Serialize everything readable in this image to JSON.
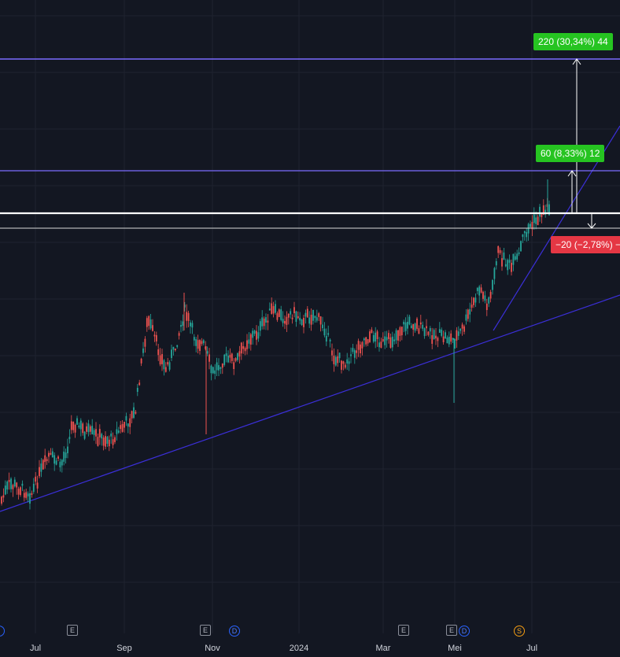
{
  "colors": {
    "background": "#131722",
    "grid": "#1f2330",
    "up_candle": "#26a69a",
    "down_candle": "#ef5350",
    "trendline": "#3b2fd9",
    "level_line": "#7b6cff",
    "measure_up": "#26c421",
    "measure_down": "#e53744"
  },
  "chart_data": {
    "type": "candlestick",
    "x_axis": {
      "tick_labels": [
        "Jul",
        "Sep",
        "Nov",
        "2024",
        "Mar",
        "Mei",
        "Jul"
      ]
    },
    "price_levels": [
      {
        "kind": "target",
        "label": "220 (30,34%) 44"
      },
      {
        "kind": "target",
        "label": "60 (8,33%) 12"
      },
      {
        "kind": "entry"
      },
      {
        "kind": "stop",
        "label": "−20 (−2,78%) −"
      }
    ],
    "trendlines": [
      {
        "name": "long-term support"
      },
      {
        "name": "short-term support"
      }
    ],
    "events": [
      {
        "type": "earnings",
        "symbol": "E"
      },
      {
        "type": "earnings",
        "symbol": "E"
      },
      {
        "type": "dividend",
        "symbol": "D"
      },
      {
        "type": "earnings",
        "symbol": "E"
      },
      {
        "type": "earnings",
        "symbol": "E"
      },
      {
        "type": "dividend",
        "symbol": "D"
      },
      {
        "type": "split",
        "symbol": "S"
      }
    ],
    "grid": true
  }
}
